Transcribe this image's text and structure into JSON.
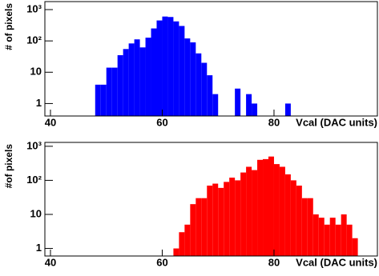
{
  "chart_data": [
    {
      "type": "histogram",
      "color": "#0000ff",
      "log_y": true,
      "ylabel": "# of pixels",
      "xlabel": "Vcal (DAC units)",
      "bins": [
        48,
        49,
        50,
        51,
        52,
        53,
        54,
        55,
        56,
        57,
        58,
        59,
        60,
        61,
        62,
        63,
        64,
        65,
        66,
        67,
        68,
        69,
        70,
        71,
        72,
        73,
        74,
        75,
        76,
        77,
        78,
        79,
        80,
        81,
        82,
        83
      ],
      "counts": [
        4,
        4,
        14,
        14,
        35,
        55,
        83,
        112,
        62,
        127,
        250,
        450,
        600,
        580,
        420,
        300,
        120,
        90,
        40,
        20,
        8,
        2,
        0,
        0,
        0,
        3,
        0,
        2,
        1,
        0,
        0,
        0,
        0,
        0,
        1
      ],
      "xlim": [
        39,
        98.5
      ],
      "xticks": [
        40,
        60,
        80
      ],
      "ylim": [
        0.4,
        1800
      ],
      "yticks": [
        1,
        10,
        {
          "value": 100,
          "label": "10²"
        },
        {
          "value": 1000,
          "label": "10³"
        }
      ]
    },
    {
      "type": "histogram",
      "color": "#ff0000",
      "log_y": true,
      "ylabel": "#of pixels",
      "xlabel": "Vcal (DAC units)",
      "bins": [
        62,
        63,
        64,
        65,
        66,
        67,
        68,
        69,
        70,
        71,
        72,
        73,
        74,
        75,
        76,
        77,
        78,
        79,
        80,
        81,
        82,
        83,
        84,
        85,
        86,
        87,
        88,
        89,
        90,
        91,
        92,
        93,
        94,
        95
      ],
      "counts": [
        1,
        3,
        5,
        20,
        30,
        30,
        70,
        80,
        60,
        90,
        120,
        100,
        170,
        250,
        200,
        400,
        420,
        500,
        300,
        250,
        150,
        100,
        70,
        30,
        30,
        10,
        8,
        5,
        8,
        5,
        10,
        5,
        2
      ],
      "xlim": [
        39,
        98.5
      ],
      "xticks": [
        40,
        60,
        80
      ],
      "ylim": [
        0.6,
        1300
      ],
      "yticks": [
        1,
        10,
        {
          "value": 100,
          "label": "10²"
        },
        {
          "value": 1000,
          "label": "10³"
        }
      ]
    }
  ]
}
